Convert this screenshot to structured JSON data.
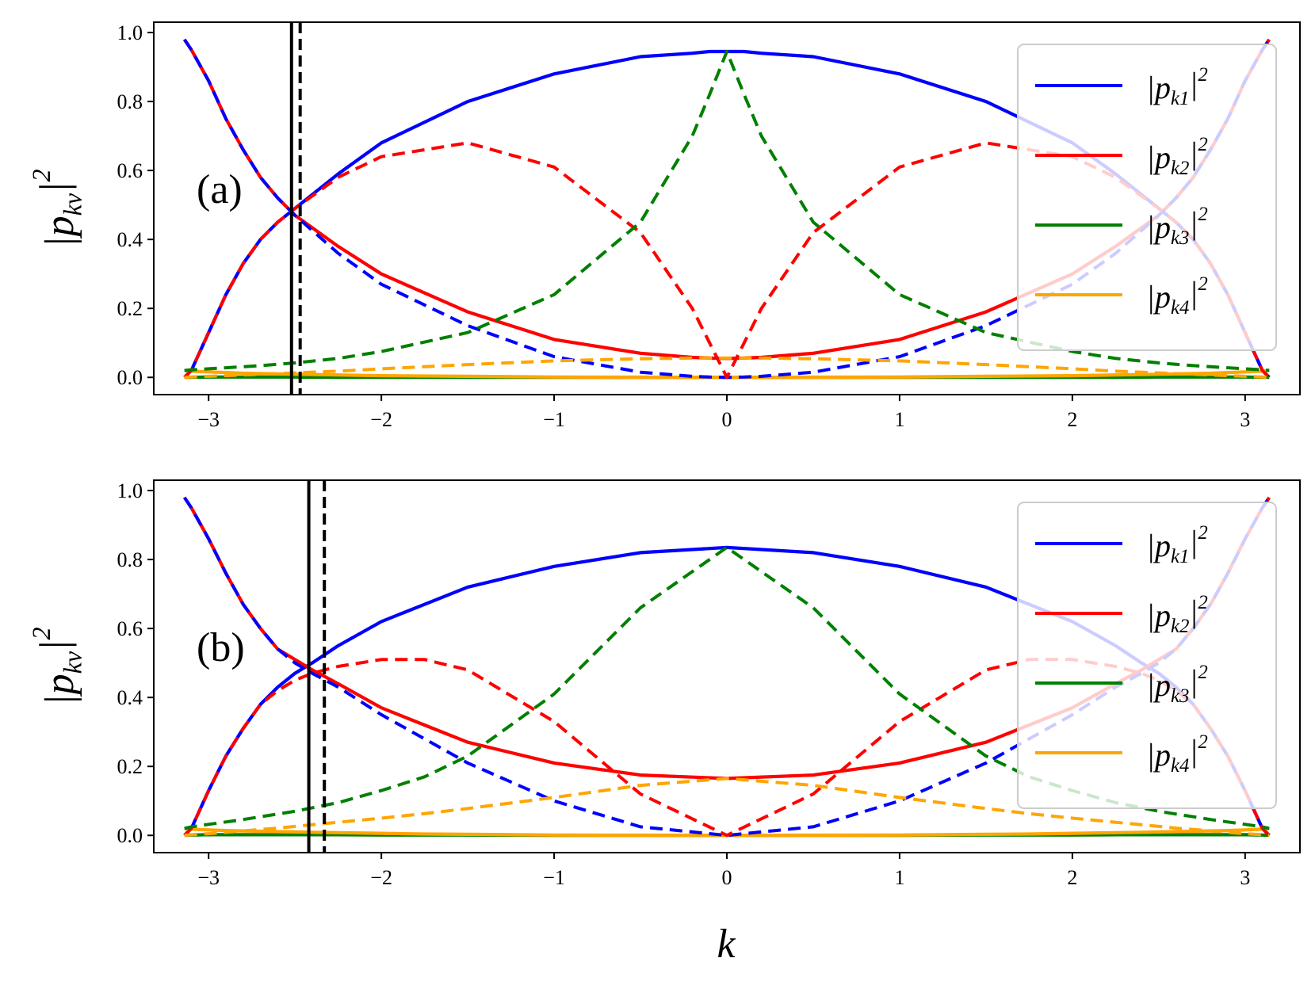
{
  "chart_data": [
    {
      "type": "line",
      "panel_label": "(a)",
      "ylabel": "|p_{kν}|^2",
      "xlabel": "",
      "xlim": [
        -3.14159,
        3.14159
      ],
      "ylim": [
        0.0,
        1.0
      ],
      "xticks": [
        "−3",
        "−2",
        "−1",
        "0",
        "1",
        "2",
        "3"
      ],
      "yticks": [
        "0.0",
        "0.2",
        "0.4",
        "0.6",
        "0.8",
        "1.0"
      ],
      "legend": {
        "placement": "upper-right",
        "entries": [
          "|p_{k1}|^2",
          "|p_{k2}|^2",
          "|p_{k3}|^2",
          "|p_{k4}|^2"
        ]
      },
      "vlines": [
        {
          "x": -2.52,
          "style": "solid"
        },
        {
          "x": -2.47,
          "style": "dashed"
        }
      ],
      "x": [
        -3.14,
        -3.1,
        -3.0,
        -2.9,
        -2.8,
        -2.7,
        -2.6,
        -2.5,
        -2.25,
        -2.0,
        -1.5,
        -1.0,
        -0.5,
        -0.2,
        -0.1,
        0.0,
        0.1,
        0.2,
        0.5,
        1.0,
        1.5,
        2.0,
        2.25,
        2.5,
        2.6,
        2.7,
        2.8,
        2.9,
        3.0,
        3.1,
        3.14
      ],
      "series": [
        {
          "name": "|p_{k1}|^2",
          "color": "#0000ff",
          "style": "solid",
          "values": [
            0.0,
            0.02,
            0.13,
            0.24,
            0.33,
            0.4,
            0.45,
            0.49,
            0.59,
            0.68,
            0.8,
            0.88,
            0.93,
            0.94,
            0.945,
            0.945,
            0.945,
            0.94,
            0.93,
            0.88,
            0.8,
            0.68,
            0.59,
            0.49,
            0.45,
            0.4,
            0.33,
            0.24,
            0.13,
            0.02,
            0.0
          ]
        },
        {
          "name": "|p_{k2}|^2",
          "color": "#ff0000",
          "style": "solid",
          "values": [
            0.98,
            0.95,
            0.86,
            0.75,
            0.66,
            0.58,
            0.52,
            0.47,
            0.38,
            0.3,
            0.19,
            0.11,
            0.07,
            0.058,
            0.056,
            0.055,
            0.056,
            0.058,
            0.07,
            0.11,
            0.19,
            0.3,
            0.38,
            0.47,
            0.52,
            0.58,
            0.66,
            0.75,
            0.86,
            0.95,
            0.98
          ]
        },
        {
          "name": "|p_{k3}|^2",
          "color": "#008000",
          "style": "solid",
          "values": [
            0.0,
            0.0,
            0.001,
            0.001,
            0.001,
            0.001,
            0.001,
            0.001,
            0.0,
            0.0,
            0.0,
            0.0,
            0.0,
            0.0,
            0.0,
            0.0,
            0.0,
            0.0,
            0.0,
            0.0,
            0.0,
            0.0,
            0.0,
            0.001,
            0.001,
            0.001,
            0.001,
            0.001,
            0.001,
            0.0,
            0.0
          ]
        },
        {
          "name": "|p_{k4}|^2",
          "color": "#ffa500",
          "style": "solid",
          "values": [
            0.02,
            0.018,
            0.016,
            0.014,
            0.012,
            0.011,
            0.01,
            0.009,
            0.007,
            0.005,
            0.003,
            0.001,
            0.0005,
            0.0,
            0.0,
            0.0,
            0.0,
            0.0,
            0.0005,
            0.001,
            0.003,
            0.005,
            0.007,
            0.009,
            0.01,
            0.011,
            0.012,
            0.014,
            0.016,
            0.018,
            0.02
          ]
        },
        {
          "color": "#0000ff",
          "style": "dashed",
          "values": [
            0.98,
            0.95,
            0.86,
            0.75,
            0.66,
            0.58,
            0.52,
            0.47,
            0.36,
            0.27,
            0.15,
            0.06,
            0.015,
            0.003,
            0.001,
            0.0,
            0.001,
            0.003,
            0.015,
            0.06,
            0.15,
            0.27,
            0.36,
            0.47,
            0.52,
            0.58,
            0.66,
            0.75,
            0.86,
            0.95,
            0.98
          ]
        },
        {
          "color": "#ff0000",
          "style": "dashed",
          "values": [
            0.0,
            0.02,
            0.13,
            0.24,
            0.33,
            0.4,
            0.45,
            0.49,
            0.58,
            0.64,
            0.68,
            0.61,
            0.42,
            0.2,
            0.1,
            0.0,
            0.1,
            0.2,
            0.42,
            0.61,
            0.68,
            0.64,
            0.58,
            0.49,
            0.45,
            0.4,
            0.33,
            0.24,
            0.13,
            0.02,
            0.0
          ]
        },
        {
          "color": "#008000",
          "style": "dashed",
          "values": [
            0.02,
            0.022,
            0.025,
            0.028,
            0.031,
            0.034,
            0.038,
            0.042,
            0.055,
            0.075,
            0.13,
            0.24,
            0.45,
            0.7,
            0.82,
            0.945,
            0.82,
            0.7,
            0.45,
            0.24,
            0.13,
            0.075,
            0.055,
            0.042,
            0.038,
            0.034,
            0.031,
            0.028,
            0.025,
            0.022,
            0.02
          ]
        },
        {
          "color": "#ffa500",
          "style": "dashed",
          "values": [
            0.0,
            0.001,
            0.003,
            0.005,
            0.007,
            0.009,
            0.011,
            0.013,
            0.018,
            0.025,
            0.037,
            0.048,
            0.054,
            0.056,
            0.056,
            0.056,
            0.056,
            0.056,
            0.054,
            0.048,
            0.037,
            0.025,
            0.018,
            0.013,
            0.011,
            0.009,
            0.007,
            0.005,
            0.003,
            0.001,
            0.0
          ]
        }
      ]
    },
    {
      "type": "line",
      "panel_label": "(b)",
      "ylabel": "|p_{kν}|^2",
      "xlabel": "k",
      "xlim": [
        -3.14159,
        3.14159
      ],
      "ylim": [
        0.0,
        1.0
      ],
      "xticks": [
        "−3",
        "−2",
        "−1",
        "0",
        "1",
        "2",
        "3"
      ],
      "yticks": [
        "0.0",
        "0.2",
        "0.4",
        "0.6",
        "0.8",
        "1.0"
      ],
      "legend": {
        "placement": "upper-right",
        "entries": [
          "|p_{k1}|^2",
          "|p_{k2}|^2",
          "|p_{k3}|^2",
          "|p_{k4}|^2"
        ]
      },
      "vlines": [
        {
          "x": -2.42,
          "style": "solid"
        },
        {
          "x": -2.33,
          "style": "dashed"
        }
      ],
      "x": [
        -3.14,
        -3.1,
        -3.0,
        -2.9,
        -2.8,
        -2.7,
        -2.6,
        -2.5,
        -2.4,
        -2.25,
        -2.0,
        -1.75,
        -1.5,
        -1.0,
        -0.5,
        0.0,
        0.5,
        1.0,
        1.5,
        1.75,
        2.0,
        2.25,
        2.4,
        2.5,
        2.6,
        2.7,
        2.8,
        2.9,
        3.0,
        3.1,
        3.14
      ],
      "series": [
        {
          "name": "|p_{k1}|^2",
          "color": "#0000ff",
          "style": "solid",
          "values": [
            0.0,
            0.02,
            0.13,
            0.23,
            0.31,
            0.38,
            0.43,
            0.47,
            0.5,
            0.55,
            0.62,
            0.67,
            0.72,
            0.78,
            0.82,
            0.835,
            0.82,
            0.78,
            0.72,
            0.67,
            0.62,
            0.55,
            0.5,
            0.47,
            0.43,
            0.38,
            0.31,
            0.23,
            0.13,
            0.02,
            0.0
          ]
        },
        {
          "name": "|p_{k2}|^2",
          "color": "#ff0000",
          "style": "solid",
          "values": [
            0.98,
            0.95,
            0.86,
            0.76,
            0.67,
            0.6,
            0.54,
            0.51,
            0.48,
            0.44,
            0.37,
            0.32,
            0.27,
            0.21,
            0.175,
            0.165,
            0.175,
            0.21,
            0.27,
            0.32,
            0.37,
            0.44,
            0.48,
            0.51,
            0.54,
            0.6,
            0.67,
            0.76,
            0.86,
            0.95,
            0.98
          ]
        },
        {
          "name": "|p_{k3}|^2",
          "color": "#008000",
          "style": "solid",
          "values": [
            0.0,
            0.001,
            0.002,
            0.002,
            0.002,
            0.002,
            0.002,
            0.002,
            0.002,
            0.002,
            0.001,
            0.001,
            0.001,
            0.0,
            0.0,
            0.0,
            0.0,
            0.0,
            0.001,
            0.001,
            0.001,
            0.002,
            0.002,
            0.002,
            0.002,
            0.002,
            0.002,
            0.002,
            0.002,
            0.001,
            0.0
          ]
        },
        {
          "name": "|p_{k4}|^2",
          "color": "#ffa500",
          "style": "solid",
          "values": [
            0.02,
            0.018,
            0.016,
            0.014,
            0.013,
            0.012,
            0.011,
            0.01,
            0.009,
            0.008,
            0.006,
            0.004,
            0.003,
            0.001,
            0.0005,
            0.0,
            0.0005,
            0.001,
            0.003,
            0.004,
            0.006,
            0.008,
            0.009,
            0.01,
            0.011,
            0.012,
            0.013,
            0.014,
            0.016,
            0.018,
            0.02
          ]
        },
        {
          "color": "#0000ff",
          "style": "dashed",
          "values": [
            0.98,
            0.95,
            0.86,
            0.76,
            0.67,
            0.6,
            0.54,
            0.5,
            0.47,
            0.43,
            0.35,
            0.28,
            0.21,
            0.1,
            0.025,
            0.0,
            0.025,
            0.1,
            0.21,
            0.28,
            0.35,
            0.43,
            0.47,
            0.5,
            0.54,
            0.6,
            0.67,
            0.76,
            0.86,
            0.95,
            0.98
          ]
        },
        {
          "color": "#ff0000",
          "style": "dashed",
          "values": [
            0.0,
            0.02,
            0.13,
            0.23,
            0.31,
            0.38,
            0.42,
            0.45,
            0.47,
            0.49,
            0.51,
            0.51,
            0.48,
            0.33,
            0.12,
            0.0,
            0.12,
            0.33,
            0.48,
            0.51,
            0.51,
            0.49,
            0.47,
            0.45,
            0.42,
            0.38,
            0.31,
            0.23,
            0.13,
            0.02,
            0.0
          ]
        },
        {
          "color": "#008000",
          "style": "dashed",
          "values": [
            0.02,
            0.025,
            0.032,
            0.039,
            0.046,
            0.054,
            0.062,
            0.07,
            0.08,
            0.095,
            0.13,
            0.17,
            0.23,
            0.41,
            0.66,
            0.835,
            0.66,
            0.41,
            0.23,
            0.17,
            0.13,
            0.095,
            0.08,
            0.07,
            0.062,
            0.054,
            0.046,
            0.039,
            0.032,
            0.025,
            0.02
          ]
        },
        {
          "color": "#ffa500",
          "style": "dashed",
          "values": [
            0.0,
            0.002,
            0.005,
            0.009,
            0.013,
            0.017,
            0.021,
            0.026,
            0.031,
            0.038,
            0.05,
            0.063,
            0.078,
            0.11,
            0.145,
            0.165,
            0.145,
            0.11,
            0.078,
            0.063,
            0.05,
            0.038,
            0.031,
            0.026,
            0.021,
            0.017,
            0.013,
            0.009,
            0.005,
            0.002,
            0.0
          ]
        }
      ]
    }
  ]
}
